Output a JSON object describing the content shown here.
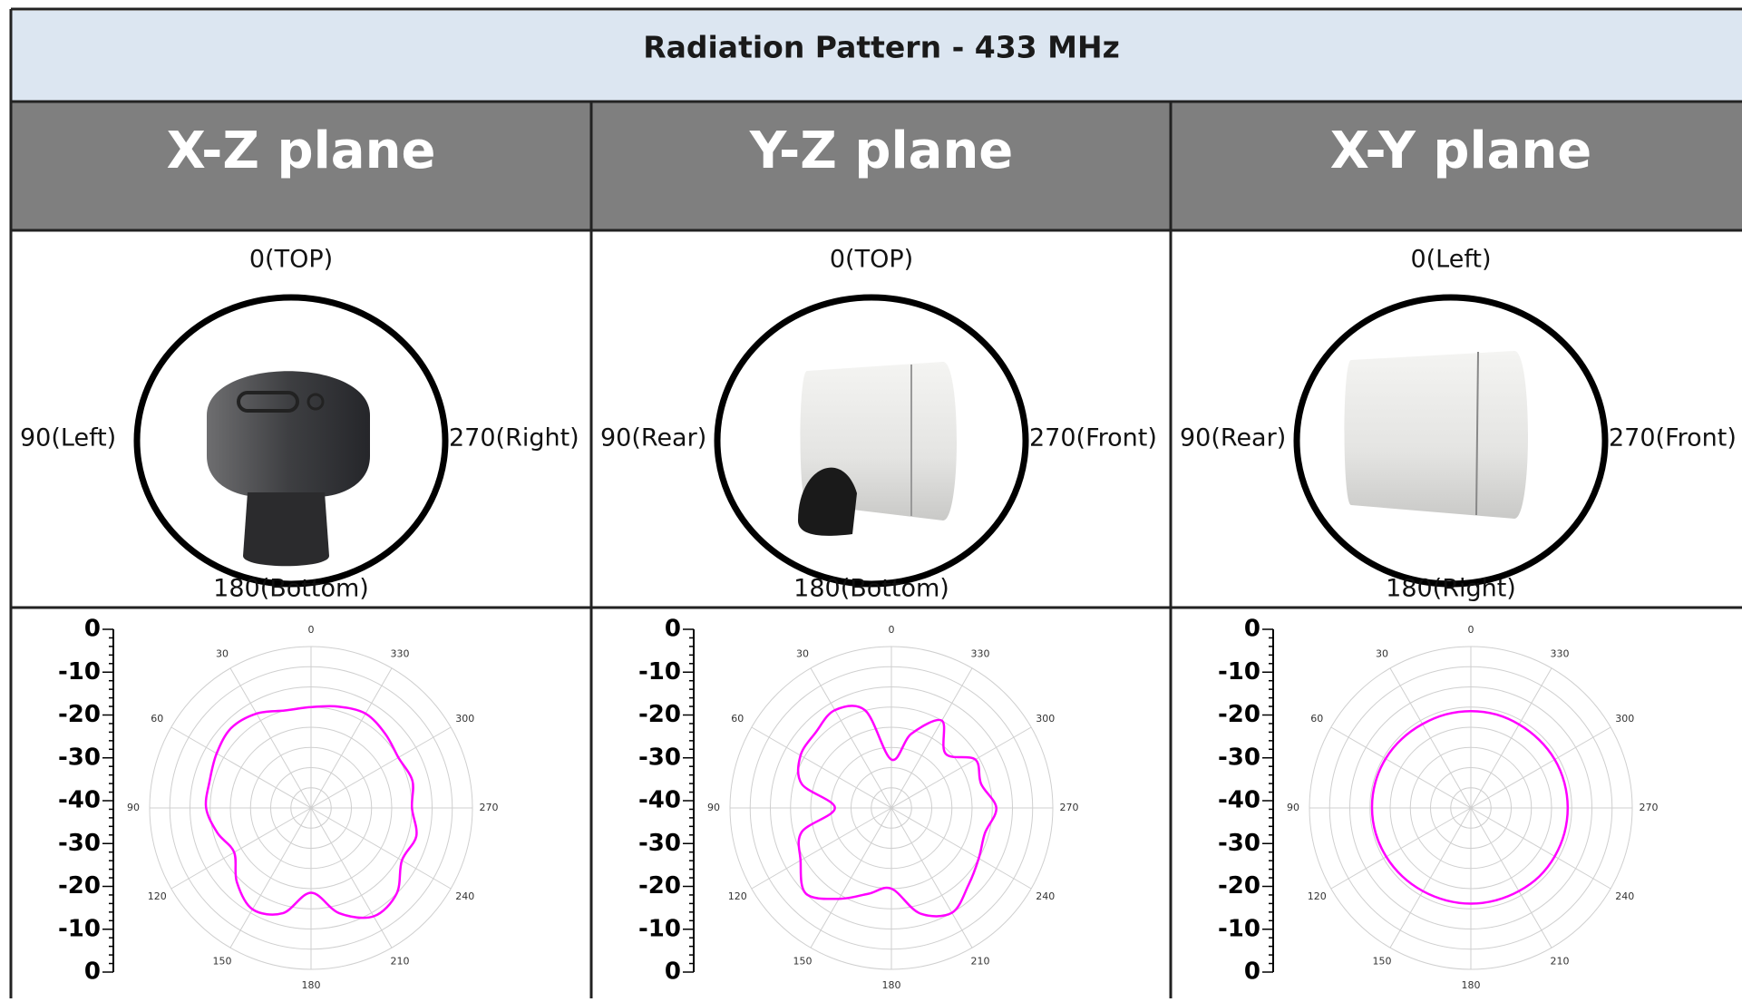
{
  "title": "Radiation Pattern - 433 MHz",
  "panels": [
    {
      "header": "X-Z plane",
      "orientation": {
        "top": "0(TOP)",
        "left": "90(Left)",
        "right": "270(Right)",
        "bottom": "180(Bottom)"
      },
      "pattern": {
        "type": "polar",
        "color": "#ff00ff",
        "scale_labels": [
          0,
          -10,
          -20,
          -30,
          -40,
          -30,
          -20,
          -10,
          0
        ],
        "angles": [
          0,
          30,
          60,
          90,
          120,
          150,
          180,
          210,
          240,
          270,
          300,
          330
        ],
        "rlim": [
          -40,
          0
        ],
        "rticks": [
          -35,
          -30,
          -25,
          -20,
          -15,
          -10,
          -5,
          0
        ],
        "theta": [
          0,
          15,
          30,
          45,
          60,
          75,
          90,
          105,
          120,
          135,
          150,
          165,
          180,
          195,
          210,
          225,
          240,
          255,
          270,
          285,
          300,
          315,
          330,
          345
        ],
        "values": [
          -15,
          -15,
          -13,
          -12,
          -13,
          -14,
          -14,
          -16,
          -18,
          -14,
          -11,
          -13,
          -19,
          -13,
          -9,
          -10,
          -14,
          -13,
          -15,
          -14,
          -15,
          -14,
          -13,
          -14
        ]
      }
    },
    {
      "header": "Y-Z plane",
      "orientation": {
        "top": "0(TOP)",
        "left": "90(Rear)",
        "right": "270(Front)",
        "bottom": "180(Bottom)"
      },
      "pattern": {
        "type": "polar",
        "color": "#ff00ff",
        "scale_labels": [
          0,
          -10,
          -20,
          -30,
          -40,
          -30,
          -20,
          -10,
          0
        ],
        "angles": [
          0,
          30,
          60,
          90,
          120,
          150,
          180,
          210,
          240,
          270,
          300,
          330
        ],
        "rlim": [
          -40,
          0
        ],
        "rticks": [
          -35,
          -30,
          -25,
          -20,
          -15,
          -10,
          -5,
          0
        ],
        "theta": [
          0,
          15,
          30,
          45,
          60,
          75,
          90,
          105,
          120,
          135,
          150,
          165,
          180,
          195,
          210,
          225,
          240,
          255,
          270,
          285,
          300,
          315,
          330,
          345
        ],
        "values": [
          -28,
          -15,
          -12,
          -13.5,
          -14,
          -17,
          -26,
          -17,
          -14,
          -10,
          -14,
          -18,
          -20,
          -13,
          -10,
          -13,
          -15,
          -16,
          -14,
          -17,
          -16,
          -21,
          -15,
          -21
        ]
      }
    },
    {
      "header": "X-Y plane",
      "orientation": {
        "top": "0(Left)",
        "left": "90(Rear)",
        "right": "270(Front)",
        "bottom": "180(Right)"
      },
      "pattern": {
        "type": "polar",
        "color": "#ff00ff",
        "scale_labels": [
          0,
          -10,
          -20,
          -30,
          -40,
          -30,
          -20,
          -10,
          0
        ],
        "angles": [
          0,
          30,
          60,
          90,
          120,
          150,
          180,
          210,
          240,
          270,
          300,
          330
        ],
        "rlim": [
          -40,
          0
        ],
        "rticks": [
          -35,
          -30,
          -25,
          -20,
          -15,
          -10,
          -5,
          0
        ],
        "theta": [
          0,
          15,
          30,
          45,
          60,
          75,
          90,
          105,
          120,
          135,
          150,
          165,
          180,
          195,
          210,
          225,
          240,
          255,
          270,
          285,
          300,
          315,
          330,
          345
        ],
        "values": [
          -16,
          -16,
          -16,
          -15.8,
          -15.6,
          -15.5,
          -15.5,
          -15.6,
          -15.8,
          -16,
          -16.2,
          -16.3,
          -16.3,
          -16.3,
          -16.2,
          -16,
          -16,
          -16,
          -16,
          -16,
          -16,
          -16.1,
          -16.1,
          -16
        ]
      }
    }
  ]
}
